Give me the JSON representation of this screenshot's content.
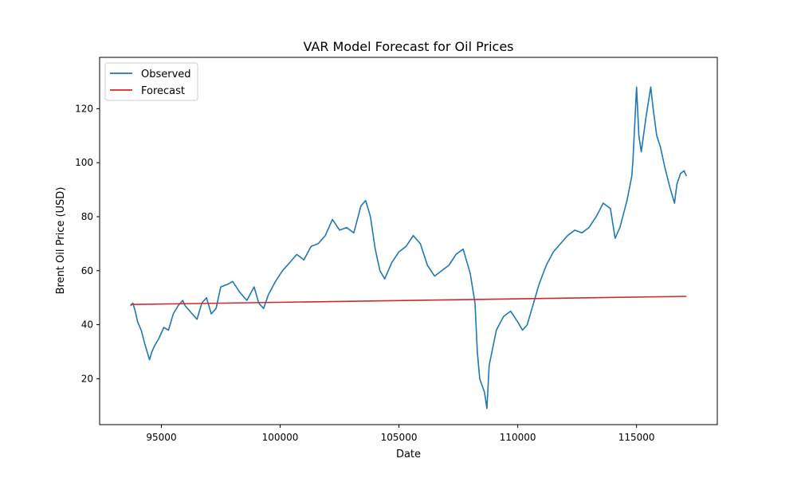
{
  "chart_data": {
    "type": "line",
    "title": "VAR Model Forecast for Oil Prices",
    "xlabel": "Date",
    "ylabel": "Brent Oil Price (USD)",
    "xlim": [
      92400,
      118400
    ],
    "ylim": [
      3,
      139
    ],
    "xticks": [
      95000,
      100000,
      105000,
      110000,
      115000
    ],
    "xtick_labels": [
      "95000",
      "100000",
      "105000",
      "110000",
      "115000"
    ],
    "yticks": [
      20,
      40,
      60,
      80,
      100,
      120
    ],
    "ytick_labels": [
      "20",
      "40",
      "60",
      "80",
      "100",
      "120"
    ],
    "grid": false,
    "legend": "top-left",
    "series": [
      {
        "name": "Observed",
        "color": "#1f77b4",
        "x": [
          93700,
          93800,
          93900,
          94000,
          94150,
          94300,
          94500,
          94600,
          94700,
          94900,
          95100,
          95300,
          95500,
          95700,
          95900,
          96000,
          96200,
          96500,
          96700,
          96900,
          97100,
          97300,
          97500,
          97800,
          98000,
          98300,
          98600,
          98900,
          99100,
          99300,
          99500,
          99800,
          100100,
          100400,
          100700,
          101000,
          101300,
          101600,
          101900,
          102200,
          102500,
          102800,
          103100,
          103400,
          103600,
          103800,
          104000,
          104200,
          104400,
          104700,
          105000,
          105300,
          105600,
          105900,
          106200,
          106500,
          106800,
          107100,
          107400,
          107700,
          108000,
          108200,
          108300,
          108400,
          108600,
          108700,
          108800,
          109100,
          109400,
          109700,
          110000,
          110200,
          110400,
          110600,
          110900,
          111200,
          111500,
          111800,
          112100,
          112400,
          112700,
          113000,
          113300,
          113600,
          113900,
          114100,
          114300,
          114600,
          114800,
          114850,
          115000,
          115100,
          115200,
          115400,
          115600,
          115700,
          115850,
          116000,
          116200,
          116400,
          116600,
          116700,
          116850,
          117000,
          117100
        ],
        "values": [
          47,
          48,
          45,
          41,
          38,
          33,
          27,
          30,
          32,
          35,
          39,
          38,
          44,
          47,
          49,
          47,
          45,
          42,
          48,
          50,
          44,
          46,
          54,
          55,
          56,
          52,
          49,
          54,
          48,
          46,
          51,
          56,
          60,
          63,
          66,
          64,
          69,
          70,
          73,
          79,
          75,
          76,
          74,
          84,
          86,
          80,
          68,
          60,
          57,
          63,
          67,
          69,
          73,
          70,
          62,
          58,
          60,
          62,
          66,
          68,
          59,
          48,
          30,
          20,
          15,
          9,
          25,
          38,
          43,
          45,
          41,
          38,
          40,
          46,
          55,
          62,
          67,
          70,
          73,
          75,
          74,
          76,
          80,
          85,
          83,
          72,
          76,
          86,
          95,
          101,
          128,
          110,
          104,
          117,
          128,
          120,
          110,
          106,
          98,
          91,
          85,
          92,
          96,
          97,
          95
        ]
      },
      {
        "name": "Forecast",
        "color": "#d62728",
        "x": [
          93700,
          117100
        ],
        "values": [
          47.5,
          50.5
        ]
      }
    ]
  }
}
